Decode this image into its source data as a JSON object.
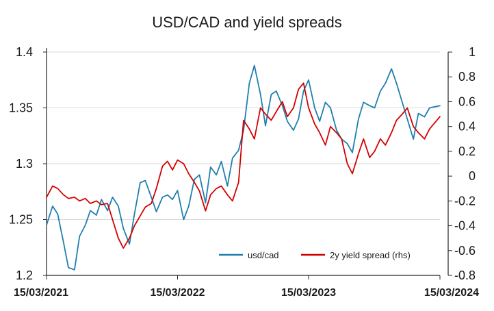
{
  "chart_data": {
    "type": "line",
    "title": "USD/CAD and yield spreads",
    "x_tick_labels": [
      "15/03/2021",
      "15/03/2022",
      "15/03/2023",
      "15/03/2024"
    ],
    "x_range": [
      "15/03/2021",
      "15/03/2024"
    ],
    "y_left": {
      "range": [
        1.2,
        1.4
      ],
      "ticks": [
        1.2,
        1.25,
        1.3,
        1.35,
        1.4
      ],
      "tick_labels": [
        "1.2",
        "1.25",
        "1.3",
        "1.35",
        "1.4"
      ]
    },
    "y_right": {
      "range": [
        -0.8,
        1
      ],
      "ticks": [
        -0.8,
        -0.6,
        -0.4,
        -0.2,
        0,
        0.2,
        0.4,
        0.6,
        0.8,
        1
      ],
      "tick_labels": [
        "-0.8",
        "-0.6",
        "-0.4",
        "-0.2",
        "0",
        "0.2",
        "0.4",
        "0.6",
        "0.8",
        "1"
      ]
    },
    "grid": true,
    "legend_position": "bottom-right",
    "series": [
      {
        "name": "usd/cad",
        "axis": "left",
        "color": "#1f7fae",
        "points": [
          [
            "15/03/2021",
            1.245
          ],
          [
            "01/04/2021",
            1.262
          ],
          [
            "15/04/2021",
            1.255
          ],
          [
            "01/05/2021",
            1.23
          ],
          [
            "15/05/2021",
            1.207
          ],
          [
            "01/06/2021",
            1.205
          ],
          [
            "15/06/2021",
            1.235
          ],
          [
            "01/07/2021",
            1.245
          ],
          [
            "15/07/2021",
            1.258
          ],
          [
            "01/08/2021",
            1.254
          ],
          [
            "15/08/2021",
            1.268
          ],
          [
            "01/09/2021",
            1.258
          ],
          [
            "15/09/2021",
            1.27
          ],
          [
            "01/10/2021",
            1.262
          ],
          [
            "15/10/2021",
            1.242
          ],
          [
            "01/11/2021",
            1.228
          ],
          [
            "15/11/2021",
            1.255
          ],
          [
            "01/12/2021",
            1.283
          ],
          [
            "15/12/2021",
            1.285
          ],
          [
            "01/01/2022",
            1.27
          ],
          [
            "15/01/2022",
            1.257
          ],
          [
            "01/02/2022",
            1.27
          ],
          [
            "15/02/2022",
            1.272
          ],
          [
            "01/03/2022",
            1.268
          ],
          [
            "15/03/2022",
            1.276
          ],
          [
            "01/04/2022",
            1.25
          ],
          [
            "15/04/2022",
            1.262
          ],
          [
            "01/05/2022",
            1.286
          ],
          [
            "15/05/2022",
            1.29
          ],
          [
            "01/06/2022",
            1.265
          ],
          [
            "15/06/2022",
            1.297
          ],
          [
            "01/07/2022",
            1.29
          ],
          [
            "15/07/2022",
            1.302
          ],
          [
            "01/08/2022",
            1.28
          ],
          [
            "15/08/2022",
            1.305
          ],
          [
            "01/09/2022",
            1.312
          ],
          [
            "15/09/2022",
            1.33
          ],
          [
            "01/10/2022",
            1.372
          ],
          [
            "15/10/2022",
            1.388
          ],
          [
            "01/11/2022",
            1.362
          ],
          [
            "15/11/2022",
            1.334
          ],
          [
            "01/12/2022",
            1.362
          ],
          [
            "15/12/2022",
            1.365
          ],
          [
            "01/01/2023",
            1.352
          ],
          [
            "15/01/2023",
            1.338
          ],
          [
            "01/02/2023",
            1.33
          ],
          [
            "15/02/2023",
            1.34
          ],
          [
            "01/03/2023",
            1.365
          ],
          [
            "15/03/2023",
            1.375
          ],
          [
            "01/04/2023",
            1.35
          ],
          [
            "15/04/2023",
            1.338
          ],
          [
            "01/05/2023",
            1.355
          ],
          [
            "15/05/2023",
            1.35
          ],
          [
            "01/06/2023",
            1.33
          ],
          [
            "15/06/2023",
            1.322
          ],
          [
            "01/07/2023",
            1.318
          ],
          [
            "15/07/2023",
            1.31
          ],
          [
            "01/08/2023",
            1.34
          ],
          [
            "15/08/2023",
            1.355
          ],
          [
            "01/09/2023",
            1.352
          ],
          [
            "15/09/2023",
            1.35
          ],
          [
            "01/10/2023",
            1.365
          ],
          [
            "15/10/2023",
            1.372
          ],
          [
            "01/11/2023",
            1.385
          ],
          [
            "15/11/2023",
            1.372
          ],
          [
            "01/12/2023",
            1.355
          ],
          [
            "15/12/2023",
            1.34
          ],
          [
            "01/01/2024",
            1.322
          ],
          [
            "15/01/2024",
            1.345
          ],
          [
            "01/02/2024",
            1.342
          ],
          [
            "15/02/2024",
            1.35
          ],
          [
            "15/03/2024",
            1.352
          ]
        ]
      },
      {
        "name": "2y yield spread (rhs)",
        "axis": "right",
        "color": "#d40000",
        "points": [
          [
            "15/03/2021",
            -0.17
          ],
          [
            "01/04/2021",
            -0.08
          ],
          [
            "15/04/2021",
            -0.1
          ],
          [
            "01/05/2021",
            -0.15
          ],
          [
            "15/05/2021",
            -0.18
          ],
          [
            "01/06/2021",
            -0.17
          ],
          [
            "15/06/2021",
            -0.2
          ],
          [
            "01/07/2021",
            -0.18
          ],
          [
            "15/07/2021",
            -0.22
          ],
          [
            "01/08/2021",
            -0.2
          ],
          [
            "15/08/2021",
            -0.23
          ],
          [
            "01/09/2021",
            -0.22
          ],
          [
            "15/09/2021",
            -0.35
          ],
          [
            "01/10/2021",
            -0.5
          ],
          [
            "15/10/2021",
            -0.58
          ],
          [
            "01/11/2021",
            -0.5
          ],
          [
            "15/11/2021",
            -0.4
          ],
          [
            "01/12/2021",
            -0.32
          ],
          [
            "15/12/2021",
            -0.25
          ],
          [
            "01/01/2022",
            -0.22
          ],
          [
            "15/01/2022",
            -0.1
          ],
          [
            "01/02/2022",
            0.08
          ],
          [
            "15/02/2022",
            0.12
          ],
          [
            "01/03/2022",
            0.05
          ],
          [
            "15/03/2022",
            0.13
          ],
          [
            "01/04/2022",
            0.1
          ],
          [
            "15/04/2022",
            0.02
          ],
          [
            "01/05/2022",
            -0.05
          ],
          [
            "15/05/2022",
            -0.12
          ],
          [
            "01/06/2022",
            -0.28
          ],
          [
            "15/06/2022",
            -0.15
          ],
          [
            "01/07/2022",
            -0.1
          ],
          [
            "15/07/2022",
            -0.08
          ],
          [
            "01/08/2022",
            -0.15
          ],
          [
            "15/08/2022",
            -0.2
          ],
          [
            "01/09/2022",
            -0.05
          ],
          [
            "15/09/2022",
            0.45
          ],
          [
            "01/10/2022",
            0.38
          ],
          [
            "15/10/2022",
            0.3
          ],
          [
            "01/11/2022",
            0.55
          ],
          [
            "15/11/2022",
            0.5
          ],
          [
            "01/12/2022",
            0.45
          ],
          [
            "15/12/2022",
            0.52
          ],
          [
            "01/01/2023",
            0.6
          ],
          [
            "15/01/2023",
            0.48
          ],
          [
            "01/02/2023",
            0.55
          ],
          [
            "15/02/2023",
            0.7
          ],
          [
            "01/03/2023",
            0.75
          ],
          [
            "15/03/2023",
            0.55
          ],
          [
            "01/04/2023",
            0.42
          ],
          [
            "15/04/2023",
            0.35
          ],
          [
            "01/05/2023",
            0.25
          ],
          [
            "15/05/2023",
            0.4
          ],
          [
            "01/06/2023",
            0.35
          ],
          [
            "15/06/2023",
            0.3
          ],
          [
            "01/07/2023",
            0.1
          ],
          [
            "15/07/2023",
            0.02
          ],
          [
            "01/08/2023",
            0.18
          ],
          [
            "15/08/2023",
            0.3
          ],
          [
            "01/09/2023",
            0.15
          ],
          [
            "15/09/2023",
            0.2
          ],
          [
            "01/10/2023",
            0.3
          ],
          [
            "15/10/2023",
            0.25
          ],
          [
            "01/11/2023",
            0.35
          ],
          [
            "15/11/2023",
            0.45
          ],
          [
            "01/12/2023",
            0.5
          ],
          [
            "15/12/2023",
            0.55
          ],
          [
            "01/01/2024",
            0.4
          ],
          [
            "15/01/2024",
            0.35
          ],
          [
            "01/02/2024",
            0.3
          ],
          [
            "15/02/2024",
            0.38
          ],
          [
            "15/03/2024",
            0.48
          ]
        ]
      }
    ]
  }
}
